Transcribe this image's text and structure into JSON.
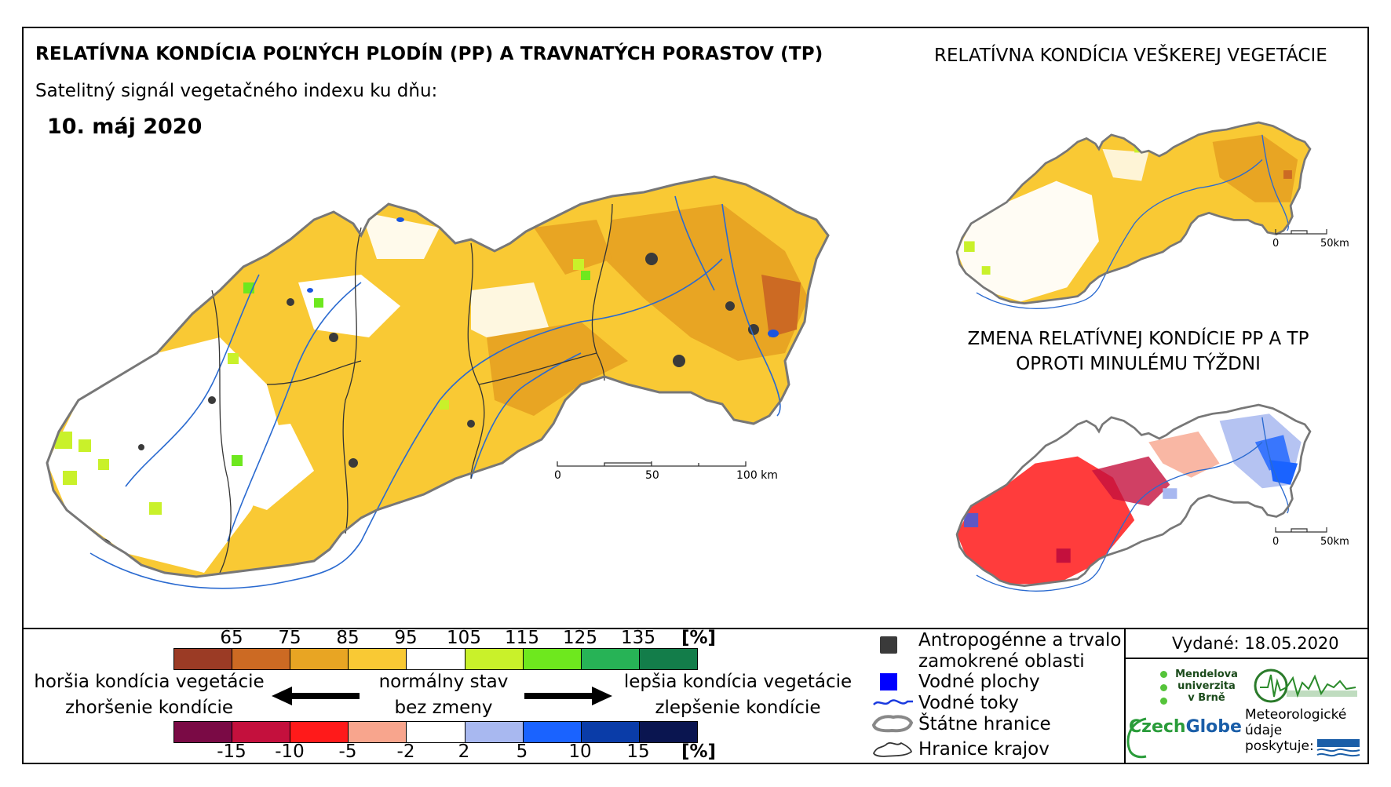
{
  "titles": {
    "main": "RELATÍVNA KONDÍCIA POĽNÝCH PLODÍN (PP) A TRAVNATÝCH PORASTOV (TP)",
    "right_top": "RELATÍVNA KONDÍCIA VEŠKEREJ VEGETÁCIE",
    "subtitle": "Satelitný signál vegetačného indexu ku dňu:",
    "date": "10. máj 2020",
    "change_line1": "ZMENA RELATÍVNEJ KONDÍCIE PP A TP",
    "change_line2": "OPROTI MINULÉMU TÝŽDNI"
  },
  "scalebars": {
    "main": {
      "labels": [
        "0",
        "50",
        "100 km"
      ]
    },
    "small_top": {
      "labels": [
        "0",
        "50km"
      ]
    },
    "small_bottom": {
      "labels": [
        "0",
        "50km"
      ]
    }
  },
  "legend_condition": {
    "ticks": [
      "65",
      "75",
      "85",
      "95",
      "105",
      "115",
      "125",
      "135"
    ],
    "unit": "[%]",
    "colors": [
      "#9b3b25",
      "#cc6a23",
      "#e8a523",
      "#f9c934",
      "#ffffff",
      "#c9f12a",
      "#6ee81e",
      "#27b356",
      "#137d4a"
    ]
  },
  "legend_change": {
    "ticks": [
      "-15",
      "-10",
      "-5",
      "-2",
      "2",
      "5",
      "10",
      "15"
    ],
    "unit": "[%]",
    "colors": [
      "#7a0a45",
      "#c4103d",
      "#ff1a1a",
      "#f8a58d",
      "#ffffff",
      "#a8b8f0",
      "#1a63ff",
      "#0a3ca8",
      "#0a1550"
    ]
  },
  "legend_labels": {
    "worse_line1": "horšia kondícia vegetácie",
    "worse_line2": "zhoršenie kondície",
    "normal_line1": "normálny stav",
    "normal_line2": "bez zmeny",
    "better_line1": "lepšia kondícia vegetácie",
    "better_line2": "zlepšenie kondície"
  },
  "map_key": {
    "anthro_line1": "Antropogénne a trvalo",
    "anthro_line2": "zamokrené oblasti",
    "water_areas": "Vodné plochy",
    "rivers": "Vodné toky",
    "state_border": "Štátne hranice",
    "region_border": "Hranice krajov"
  },
  "issued": "Vydané: 18.05.2020",
  "institutions": {
    "mendel_line1": "Mendelova",
    "mendel_line2": "univerzita",
    "mendel_line3": "v Brně",
    "czechglobe_a": "Czech",
    "czechglobe_b": "Globe",
    "meteo_line1": "Meteorologické",
    "meteo_line2": "údaje",
    "meteo_line3": "poskytuje:"
  }
}
